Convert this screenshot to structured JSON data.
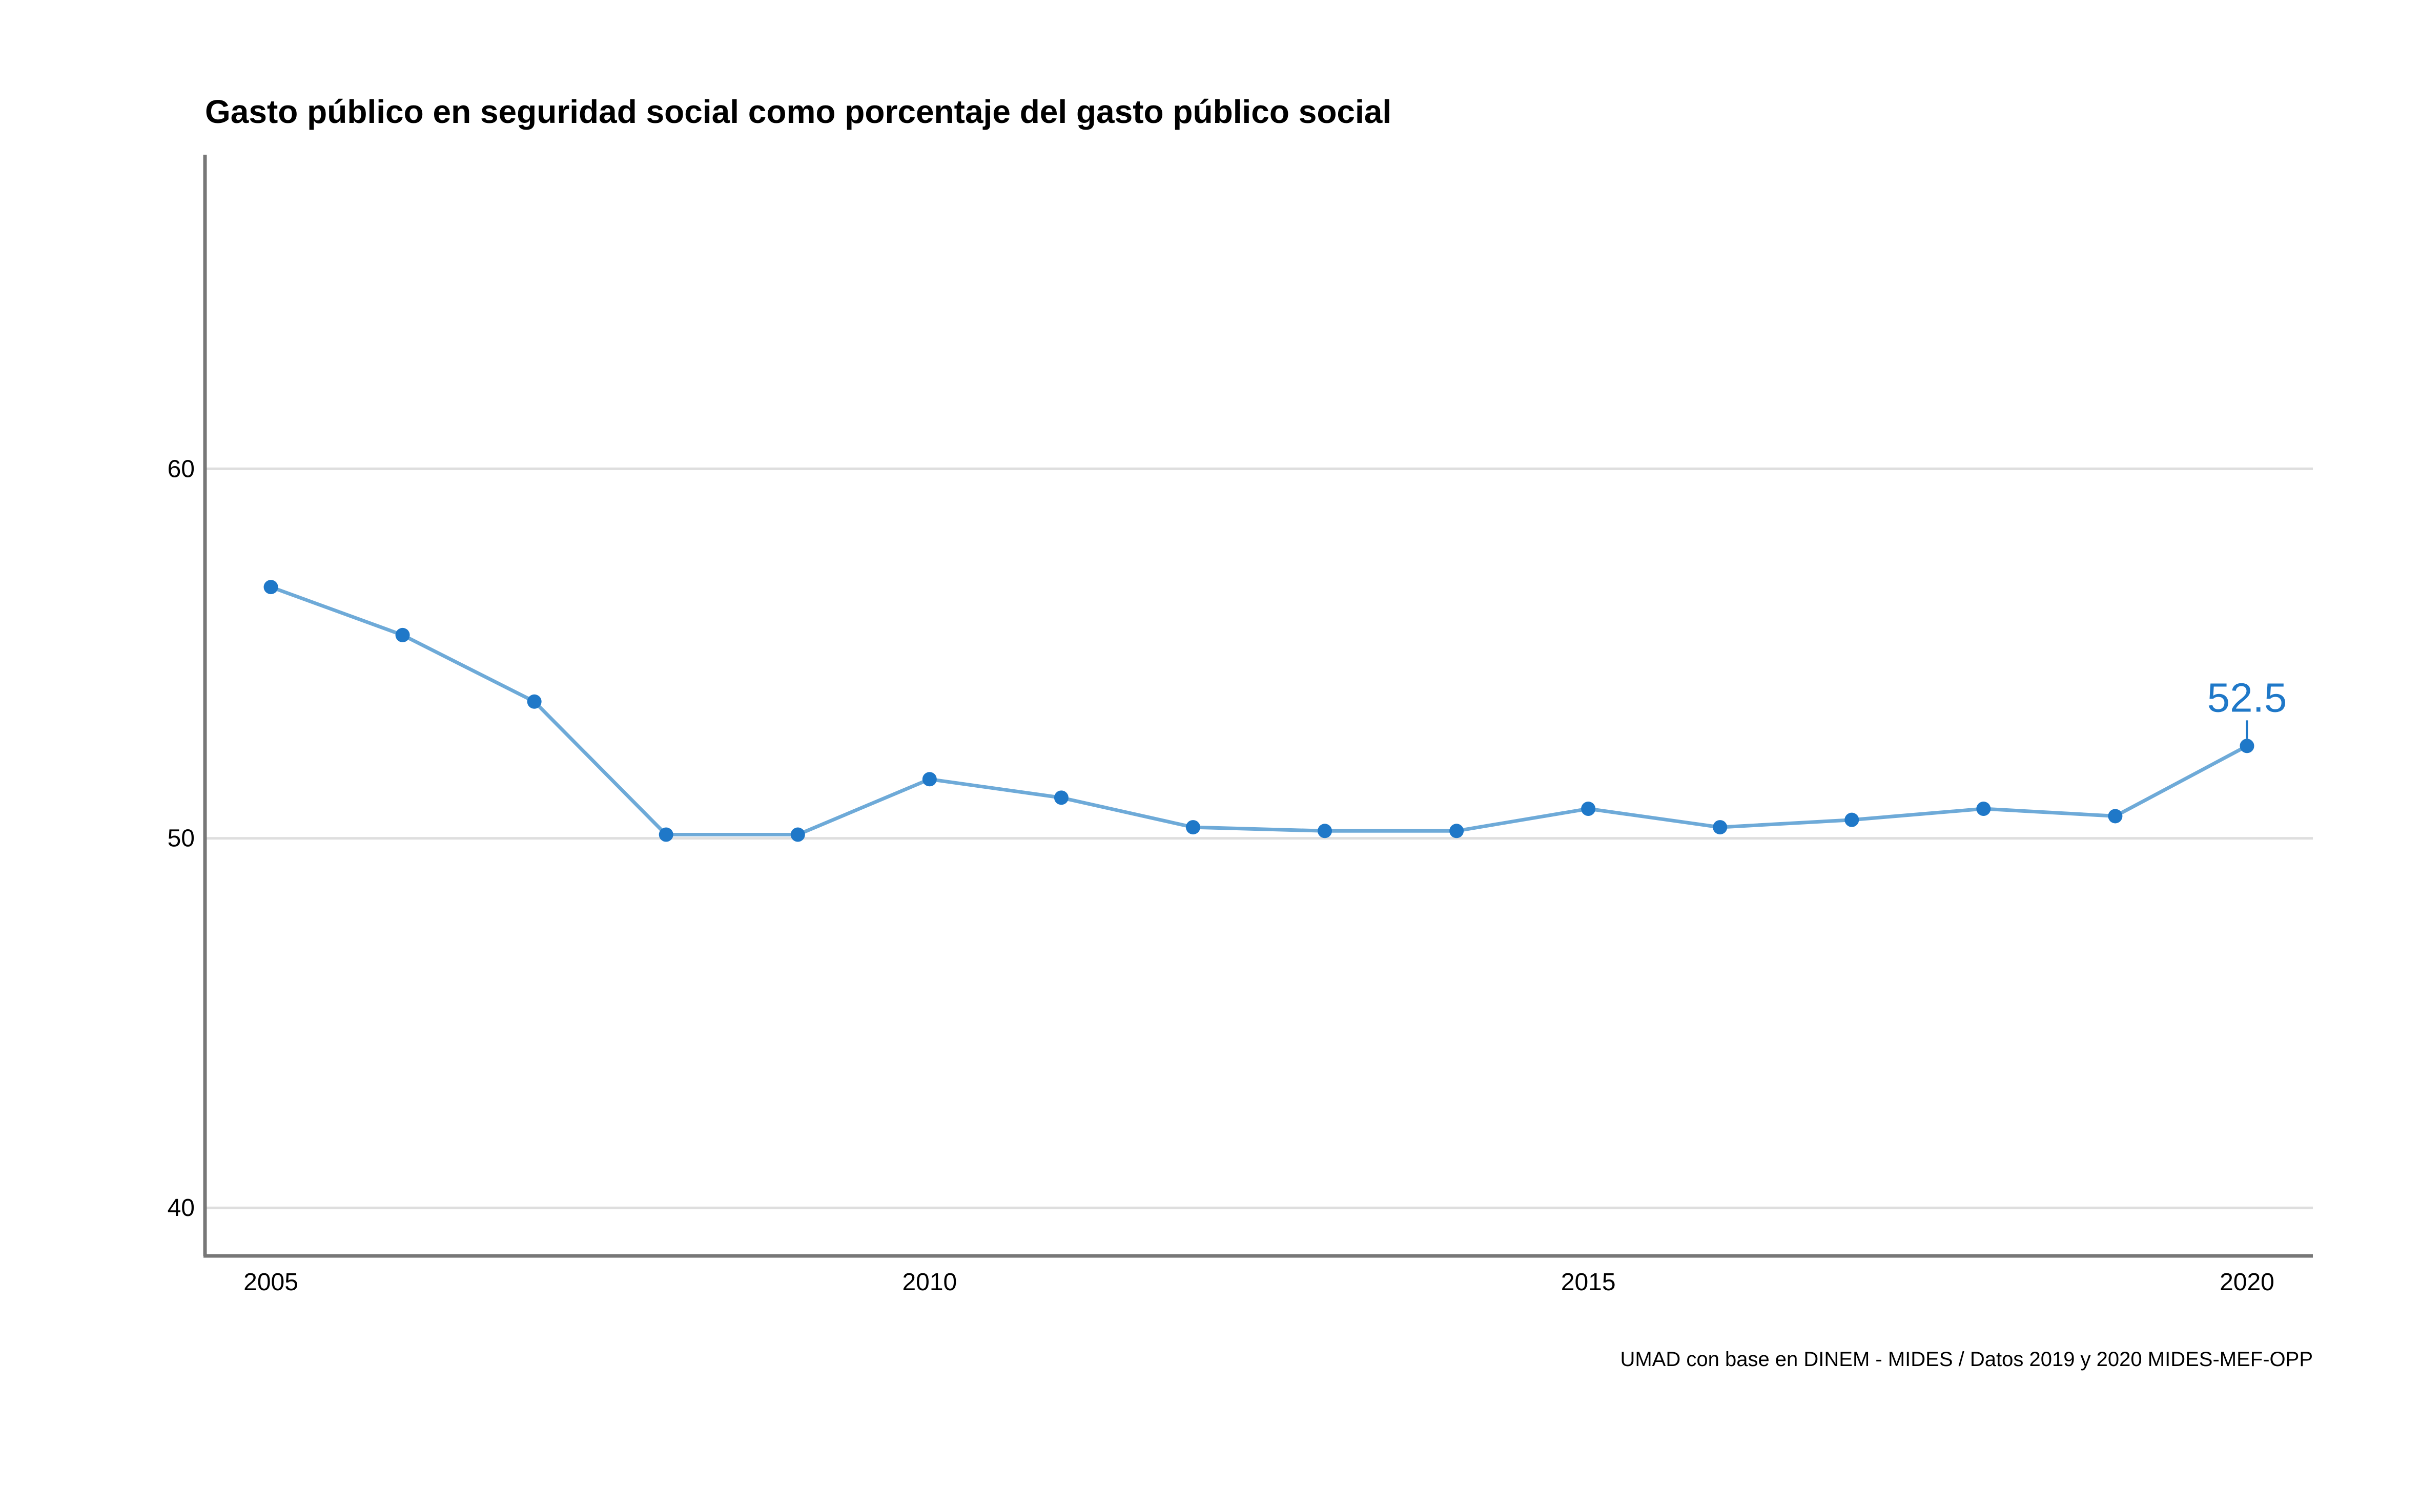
{
  "chart_data": {
    "type": "line",
    "title": "Gasto público en seguridad social como porcentaje del gasto público social",
    "caption": "UMAD con base en DINEM - MIDES / Datos 2019 y 2020 MIDES-MEF-OPP",
    "xlabel": "",
    "ylabel": "",
    "x": [
      2005,
      2006,
      2007,
      2008,
      2009,
      2010,
      2011,
      2012,
      2013,
      2014,
      2015,
      2016,
      2017,
      2018,
      2019,
      2020
    ],
    "series": [
      {
        "values": [
          56.8,
          55.5,
          53.7,
          50.1,
          50.1,
          51.6,
          51.1,
          50.3,
          50.2,
          50.2,
          50.8,
          50.3,
          50.5,
          50.8,
          50.6,
          52.5
        ]
      }
    ],
    "xlim": [
      2004.5,
      2020.5
    ],
    "ylim": [
      38.7,
      68.5
    ],
    "xticks": [
      "2005",
      "2010",
      "2015",
      "2020"
    ],
    "yticks": [
      "40",
      "50",
      "60"
    ],
    "annotation": {
      "x": 2020,
      "text": "52.5"
    },
    "grid": "horizontal",
    "legend": "none",
    "colors": {
      "line": "#6EAAD8",
      "points": "#1F78C8",
      "label": "#1F78C8",
      "grid": "#DEDEDE",
      "axis": "#777777"
    }
  }
}
